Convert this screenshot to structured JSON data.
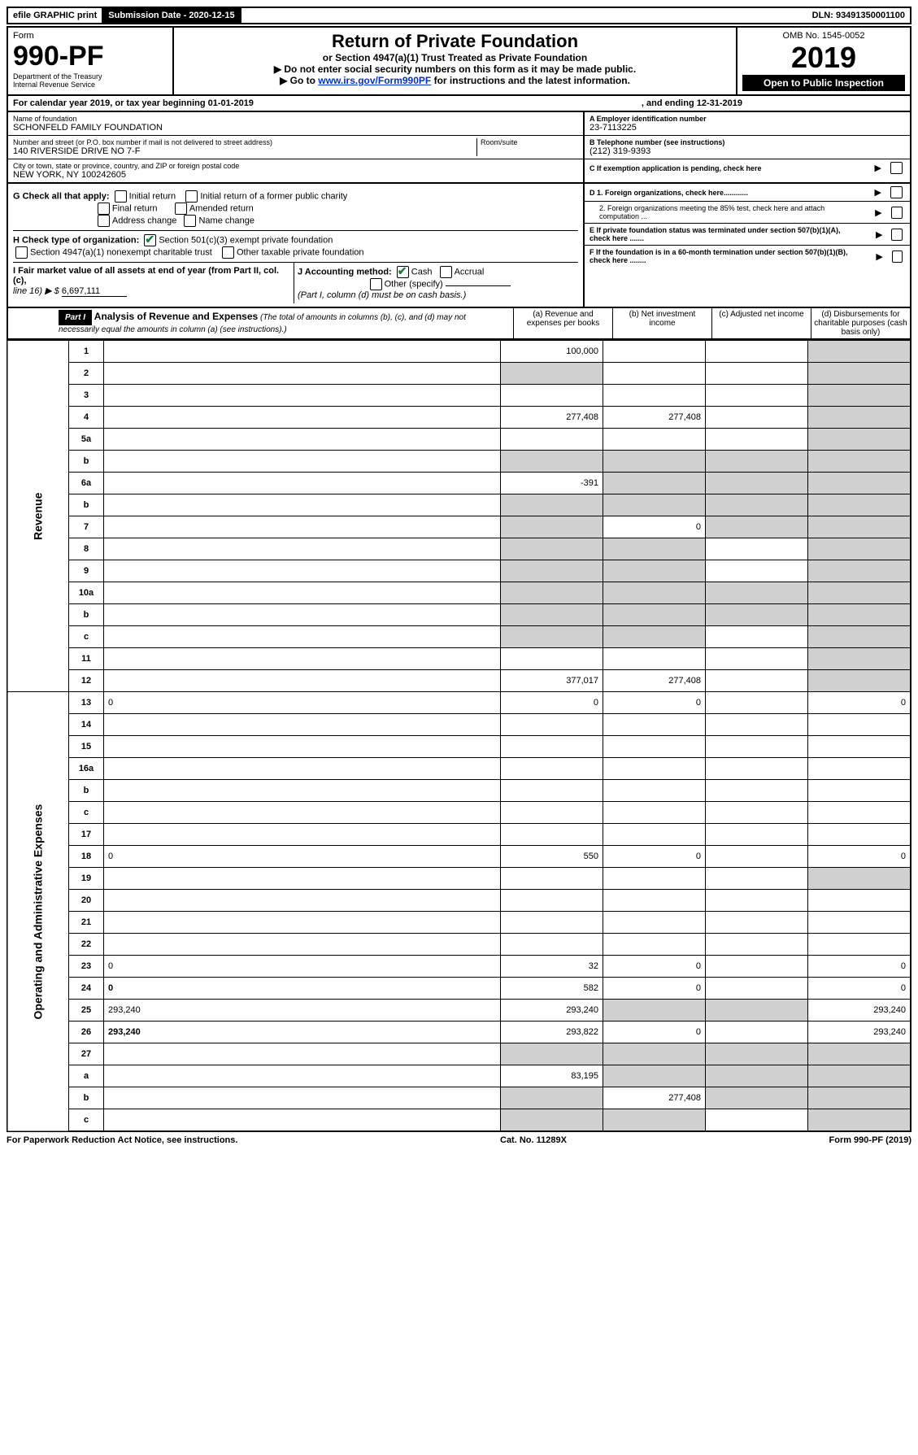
{
  "topbar": {
    "efile": "efile GRAPHIC print",
    "sub_label": "Submission Date - 2020-12-15",
    "dln": "DLN: 93491350001100"
  },
  "header": {
    "form_label": "Form",
    "form_num": "990-PF",
    "dept1": "Department of the Treasury",
    "dept2": "Internal Revenue Service",
    "title": "Return of Private Foundation",
    "sub1": "or Section 4947(a)(1) Trust Treated as Private Foundation",
    "sub2": "▶ Do not enter social security numbers on this form as it may be made public.",
    "sub3_pre": "▶ Go to ",
    "sub3_link": "www.irs.gov/Form990PF",
    "sub3_post": " for instructions and the latest information.",
    "omb": "OMB No. 1545-0052",
    "year": "2019",
    "open": "Open to Public Inspection"
  },
  "cal": {
    "text1": "For calendar year 2019, or tax year beginning 01-01-2019",
    "text2": ", and ending 12-31-2019"
  },
  "info": {
    "name_label": "Name of foundation",
    "name": "SCHONFELD FAMILY FOUNDATION",
    "addr_label": "Number and street (or P.O. box number if mail is not delivered to street address)",
    "addr": "140 RIVERSIDE DRIVE NO 7-F",
    "room_label": "Room/suite",
    "city_label": "City or town, state or province, country, and ZIP or foreign postal code",
    "city": "NEW YORK, NY  100242605",
    "a_label": "A Employer identification number",
    "a_val": "23-7113225",
    "b_label": "B Telephone number (see instructions)",
    "b_val": "(212) 319-9393",
    "c_label": "C If exemption application is pending, check here",
    "d1": "D 1. Foreign organizations, check here............",
    "d2": "2. Foreign organizations meeting the 85% test, check here and attach computation ...",
    "e": "E  If private foundation status was terminated under section 507(b)(1)(A), check here .......",
    "f": "F  If the foundation is in a 60-month termination under section 507(b)(1)(B), check here ........"
  },
  "g": {
    "label": "G Check all that apply:",
    "opts": [
      "Initial return",
      "Initial return of a former public charity",
      "Final return",
      "Amended return",
      "Address change",
      "Name change"
    ]
  },
  "h": {
    "label": "H Check type of organization:",
    "opt1": "Section 501(c)(3) exempt private foundation",
    "opt2": "Section 4947(a)(1) nonexempt charitable trust",
    "opt3": "Other taxable private foundation"
  },
  "i": {
    "label": "I Fair market value of all assets at end of year (from Part II, col. (c),",
    "line": "line 16) ▶ $",
    "val": "6,697,111"
  },
  "j": {
    "label": "J Accounting method:",
    "cash": "Cash",
    "accrual": "Accrual",
    "other": "Other (specify)",
    "note": "(Part I, column (d) must be on cash basis.)"
  },
  "part1": {
    "label": "Part I",
    "title": "Analysis of Revenue and Expenses",
    "note": "(The total of amounts in columns (b), (c), and (d) may not necessarily equal the amounts in column (a) (see instructions).)",
    "cols": {
      "a": "(a) Revenue and expenses per books",
      "b": "(b) Net investment income",
      "c": "(c) Adjusted net income",
      "d": "(d) Disbursements for charitable purposes (cash basis only)"
    }
  },
  "sections": {
    "rev": "Revenue",
    "exp": "Operating and Administrative Expenses"
  },
  "rows": [
    {
      "n": "1",
      "d": "",
      "a": "100,000",
      "b": "",
      "c": "",
      "ds": true
    },
    {
      "n": "2",
      "d": "",
      "a": "",
      "b": "",
      "c": "",
      "as": true,
      "ds": true
    },
    {
      "n": "3",
      "d": "",
      "a": "",
      "b": "",
      "c": "",
      "ds": true
    },
    {
      "n": "4",
      "d": "",
      "a": "277,408",
      "b": "277,408",
      "c": "",
      "ds": true
    },
    {
      "n": "5a",
      "d": "",
      "a": "",
      "b": "",
      "c": "",
      "ds": true
    },
    {
      "n": "b",
      "d": "",
      "a": "",
      "b": "",
      "c": "",
      "as": true,
      "bs": true,
      "cs": true,
      "ds": true
    },
    {
      "n": "6a",
      "d": "",
      "a": "-391",
      "b": "",
      "c": "",
      "bs": true,
      "cs": true,
      "ds": true
    },
    {
      "n": "b",
      "d": "",
      "a": "",
      "b": "",
      "c": "",
      "as": true,
      "bs": true,
      "cs": true,
      "ds": true
    },
    {
      "n": "7",
      "d": "",
      "a": "",
      "b": "0",
      "c": "",
      "as": true,
      "cs": true,
      "ds": true
    },
    {
      "n": "8",
      "d": "",
      "a": "",
      "b": "",
      "c": "",
      "as": true,
      "bs": true,
      "ds": true
    },
    {
      "n": "9",
      "d": "",
      "a": "",
      "b": "",
      "c": "",
      "as": true,
      "bs": true,
      "ds": true
    },
    {
      "n": "10a",
      "d": "",
      "a": "",
      "b": "",
      "c": "",
      "as": true,
      "bs": true,
      "cs": true,
      "ds": true
    },
    {
      "n": "b",
      "d": "",
      "a": "",
      "b": "",
      "c": "",
      "as": true,
      "bs": true,
      "cs": true,
      "ds": true
    },
    {
      "n": "c",
      "d": "",
      "a": "",
      "b": "",
      "c": "",
      "as": true,
      "bs": true,
      "ds": true
    },
    {
      "n": "11",
      "d": "",
      "a": "",
      "b": "",
      "c": "",
      "ds": true
    },
    {
      "n": "12",
      "d": "",
      "a": "377,017",
      "b": "277,408",
      "c": "",
      "bold": true,
      "ds": true
    },
    {
      "n": "13",
      "d": "0",
      "a": "0",
      "b": "0",
      "c": ""
    },
    {
      "n": "14",
      "d": "",
      "a": "",
      "b": "",
      "c": ""
    },
    {
      "n": "15",
      "d": "",
      "a": "",
      "b": "",
      "c": ""
    },
    {
      "n": "16a",
      "d": "",
      "a": "",
      "b": "",
      "c": ""
    },
    {
      "n": "b",
      "d": "",
      "a": "",
      "b": "",
      "c": ""
    },
    {
      "n": "c",
      "d": "",
      "a": "",
      "b": "",
      "c": ""
    },
    {
      "n": "17",
      "d": "",
      "a": "",
      "b": "",
      "c": ""
    },
    {
      "n": "18",
      "d": "0",
      "a": "550",
      "b": "0",
      "c": ""
    },
    {
      "n": "19",
      "d": "",
      "a": "",
      "b": "",
      "c": "",
      "ds": true
    },
    {
      "n": "20",
      "d": "",
      "a": "",
      "b": "",
      "c": ""
    },
    {
      "n": "21",
      "d": "",
      "a": "",
      "b": "",
      "c": ""
    },
    {
      "n": "22",
      "d": "",
      "a": "",
      "b": "",
      "c": ""
    },
    {
      "n": "23",
      "d": "0",
      "a": "32",
      "b": "0",
      "c": ""
    },
    {
      "n": "24",
      "d": "0",
      "a": "582",
      "b": "0",
      "c": "",
      "bold": true
    },
    {
      "n": "25",
      "d": "293,240",
      "a": "293,240",
      "b": "",
      "c": "",
      "bs": true,
      "cs": true
    },
    {
      "n": "26",
      "d": "293,240",
      "a": "293,822",
      "b": "0",
      "c": "",
      "bold": true
    },
    {
      "n": "27",
      "d": "",
      "a": "",
      "b": "",
      "c": "",
      "as": true,
      "bs": true,
      "cs": true,
      "ds": true
    },
    {
      "n": "a",
      "d": "",
      "a": "83,195",
      "b": "",
      "c": "",
      "bold": true,
      "bs": true,
      "cs": true,
      "ds": true
    },
    {
      "n": "b",
      "d": "",
      "a": "",
      "b": "277,408",
      "c": "",
      "bold": true,
      "as": true,
      "cs": true,
      "ds": true
    },
    {
      "n": "c",
      "d": "",
      "a": "",
      "b": "",
      "c": "",
      "bold": true,
      "as": true,
      "bs": true,
      "ds": true
    }
  ],
  "footer": {
    "left": "For Paperwork Reduction Act Notice, see instructions.",
    "mid": "Cat. No. 11289X",
    "right": "Form 990-PF (2019)"
  }
}
